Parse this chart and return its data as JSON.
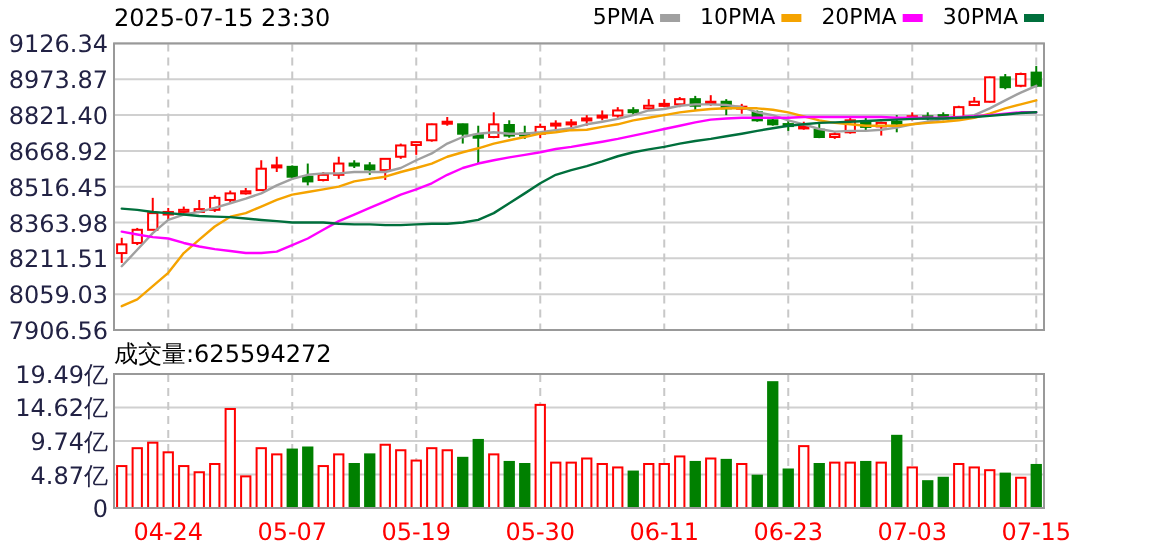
{
  "chart_data": [
    {
      "type": "candlestick",
      "title": "2025-07-15 23:30",
      "tick_labels": "y",
      "grid": true,
      "legend": "top right",
      "categories": [
        null,
        null,
        null,
        null,
        null,
        null,
        null,
        null,
        null,
        null,
        null,
        null,
        null,
        null,
        null,
        null,
        null,
        null,
        null,
        null,
        null,
        null,
        null,
        null,
        null,
        null,
        null,
        null,
        null,
        null,
        null,
        null,
        null,
        null,
        null,
        null,
        null,
        null,
        null,
        null,
        null,
        null,
        null,
        null,
        null,
        null,
        null,
        null,
        null,
        null,
        null,
        null,
        null,
        null,
        null,
        null,
        null,
        null,
        null,
        null
      ],
      "ylim": [
        7906.56,
        9126.34
      ],
      "yticks": [
        {
          "value": 7906.56,
          "label": "7906.56"
        },
        {
          "value": 8059.03,
          "label": "8059.03"
        },
        {
          "value": 8211.51,
          "label": "8211.51"
        },
        {
          "value": 8363.98,
          "label": "8363.98"
        },
        {
          "value": 8516.45,
          "label": "8516.45"
        },
        {
          "value": 8668.92,
          "label": "8668.92"
        },
        {
          "value": 8821.4,
          "label": "8821.40"
        },
        {
          "value": 8973.87,
          "label": "8973.87"
        },
        {
          "value": 9126.34,
          "label": "9126.34"
        }
      ],
      "ohlc": [
        [
          8234,
          8299,
          8192,
          8271
        ],
        [
          8277,
          8341,
          8268,
          8333
        ],
        [
          8333,
          8469,
          8333,
          8404
        ],
        [
          8398,
          8426,
          8375,
          8409
        ],
        [
          8409,
          8432,
          8398,
          8418
        ],
        [
          8409,
          8460,
          8404,
          8421
        ],
        [
          8418,
          8480,
          8409,
          8469
        ],
        [
          8460,
          8500,
          8446,
          8488
        ],
        [
          8488,
          8511,
          8483,
          8497
        ],
        [
          8502,
          8629,
          8502,
          8593
        ],
        [
          8601,
          8644,
          8579,
          8607
        ],
        [
          8601,
          8607,
          8545,
          8559
        ],
        [
          8559,
          8615,
          8522,
          8539
        ],
        [
          8545,
          8579,
          8539,
          8567
        ],
        [
          8567,
          8644,
          8550,
          8615
        ],
        [
          8615,
          8629,
          8596,
          8612
        ],
        [
          8607,
          8621,
          8567,
          8590
        ],
        [
          8587,
          8635,
          8545,
          8635
        ],
        [
          8644,
          8700,
          8635,
          8692
        ],
        [
          8694,
          8708,
          8652,
          8706
        ],
        [
          8714,
          8785,
          8708,
          8782
        ],
        [
          8788,
          8813,
          8776,
          8793
        ],
        [
          8782,
          8785,
          8700,
          8742
        ],
        [
          8737,
          8776,
          8615,
          8725
        ],
        [
          8728,
          8833,
          8723,
          8782
        ],
        [
          8779,
          8799,
          8725,
          8734
        ],
        [
          8743,
          8776,
          8720,
          8741
        ],
        [
          8742,
          8785,
          8723,
          8771
        ],
        [
          8779,
          8799,
          8757,
          8785
        ],
        [
          8785,
          8804,
          8765,
          8790
        ],
        [
          8801,
          8821,
          8776,
          8807
        ],
        [
          8813,
          8841,
          8799,
          8819
        ],
        [
          8819,
          8855,
          8810,
          8841
        ],
        [
          8842,
          8855,
          8821,
          8840
        ],
        [
          8850,
          8889,
          8841,
          8861
        ],
        [
          8864,
          8889,
          8855,
          8869
        ],
        [
          8867,
          8898,
          8855,
          8889
        ],
        [
          8889,
          8903,
          8841,
          8861
        ],
        [
          8875,
          8906,
          8861,
          8878
        ],
        [
          8878,
          8889,
          8821,
          8850
        ],
        [
          8853,
          8869,
          8827,
          8857
        ],
        [
          8833,
          8841,
          8793,
          8799
        ],
        [
          8799,
          8813,
          8776,
          8782
        ],
        [
          8783,
          8799,
          8754,
          8781
        ],
        [
          8765,
          8793,
          8759,
          8773
        ],
        [
          8759,
          8785,
          8723,
          8728
        ],
        [
          8728,
          8748,
          8720,
          8740
        ],
        [
          8748,
          8810,
          8742,
          8799
        ],
        [
          8793,
          8813,
          8757,
          8771
        ],
        [
          8773,
          8793,
          8734,
          8788
        ],
        [
          8793,
          8821,
          8748,
          8785
        ],
        [
          8807,
          8833,
          8799,
          8816
        ],
        [
          8816,
          8833,
          8799,
          8810
        ],
        [
          8821,
          8833,
          8799,
          8807
        ],
        [
          8813,
          8861,
          8810,
          8855
        ],
        [
          8864,
          8898,
          8861,
          8878
        ],
        [
          8878,
          8985,
          8875,
          8982
        ],
        [
          8982,
          8996,
          8931,
          8940
        ],
        [
          8946,
          9002,
          8940,
          8996
        ],
        [
          9002,
          9030,
          8940,
          8946
        ]
      ],
      "colors": [
        "#ff0000",
        "#ff0000",
        "#ff0000",
        "#ff0000",
        "#ff0000",
        "#ff0000",
        "#ff0000",
        "#ff0000",
        "#ff0000",
        "#ff0000",
        "#ff0000",
        "#008000",
        "#008000",
        "#ff0000",
        "#ff0000",
        "#008000",
        "#008000",
        "#ff0000",
        "#ff0000",
        "#ff0000",
        "#ff0000",
        "#ff0000",
        "#008000",
        "#008000",
        "#ff0000",
        "#008000",
        "#008000",
        "#ff0000",
        "#ff0000",
        "#ff0000",
        "#ff0000",
        "#ff0000",
        "#ff0000",
        "#008000",
        "#ff0000",
        "#ff0000",
        "#ff0000",
        "#008000",
        "#ff0000",
        "#008000",
        "#ff0000",
        "#008000",
        "#008000",
        "#008000",
        "#ff0000",
        "#008000",
        "#ff0000",
        "#ff0000",
        "#008000",
        "#ff0000",
        "#008000",
        "#ff0000",
        "#008000",
        "#008000",
        "#ff0000",
        "#ff0000",
        "#ff0000",
        "#008000",
        "#ff0000",
        "#008000"
      ],
      "series": [
        {
          "name": "5PMA",
          "type": "line",
          "color": "#a0a0a0",
          "values": [
            8178,
            8248,
            8319,
            8375,
            8398,
            8409,
            8426,
            8446,
            8466,
            8488,
            8522,
            8550,
            8567,
            8573,
            8573,
            8579,
            8579,
            8579,
            8596,
            8629,
            8658,
            8700,
            8728,
            8742,
            8748,
            8742,
            8742,
            8748,
            8757,
            8765,
            8782,
            8793,
            8805,
            8821,
            8841,
            8847,
            8861,
            8867,
            8867,
            8864,
            8855,
            8833,
            8821,
            8799,
            8782,
            8762,
            8751,
            8754,
            8754,
            8759,
            8768,
            8782,
            8793,
            8805,
            8810,
            8821,
            8850,
            8884,
            8917,
            8946
          ]
        },
        {
          "name": "10PMA",
          "type": "line",
          "color": "#f5a300",
          "values": [
            8008,
            8037,
            8093,
            8150,
            8234,
            8291,
            8347,
            8389,
            8404,
            8432,
            8460,
            8483,
            8494,
            8505,
            8517,
            8539,
            8550,
            8559,
            8579,
            8596,
            8615,
            8644,
            8663,
            8680,
            8700,
            8714,
            8728,
            8742,
            8748,
            8757,
            8759,
            8771,
            8782,
            8799,
            8810,
            8821,
            8833,
            8841,
            8847,
            8850,
            8850,
            8850,
            8844,
            8833,
            8816,
            8799,
            8788,
            8782,
            8776,
            8776,
            8776,
            8782,
            8788,
            8793,
            8799,
            8810,
            8827,
            8850,
            8867,
            8884
          ]
        },
        {
          "name": "20PMA",
          "type": "line",
          "color": "#ff00ff",
          "values": [
            8325,
            8313,
            8302,
            8296,
            8277,
            8262,
            8251,
            8243,
            8234,
            8234,
            8240,
            8268,
            8296,
            8333,
            8370,
            8398,
            8426,
            8454,
            8483,
            8505,
            8531,
            8567,
            8596,
            8615,
            8629,
            8641,
            8652,
            8663,
            8677,
            8686,
            8697,
            8708,
            8720,
            8734,
            8748,
            8762,
            8776,
            8790,
            8802,
            8807,
            8810,
            8810,
            8810,
            8810,
            8813,
            8813,
            8813,
            8813,
            8813,
            8813,
            8810,
            8810,
            8810,
            8810,
            8813,
            8816,
            8821,
            8827,
            8833,
            8833
          ]
        },
        {
          "name": "30PMA",
          "type": "line",
          "color": "#006f3c",
          "values": [
            8423,
            8418,
            8409,
            8404,
            8398,
            8392,
            8389,
            8387,
            8381,
            8375,
            8370,
            8364,
            8364,
            8364,
            8359,
            8356,
            8356,
            8353,
            8353,
            8356,
            8359,
            8359,
            8364,
            8375,
            8404,
            8446,
            8488,
            8531,
            8567,
            8587,
            8604,
            8624,
            8646,
            8663,
            8675,
            8686,
            8700,
            8711,
            8720,
            8731,
            8742,
            8754,
            8765,
            8776,
            8782,
            8788,
            8790,
            8793,
            8796,
            8799,
            8802,
            8805,
            8807,
            8807,
            8810,
            8813,
            8818,
            8824,
            8830,
            8833
          ]
        }
      ]
    },
    {
      "type": "bar",
      "title": "成交量:625594272",
      "grid": true,
      "categories": [
        null,
        null,
        null,
        "04-24",
        null,
        null,
        null,
        null,
        null,
        null,
        null,
        "05-07",
        null,
        null,
        null,
        null,
        null,
        null,
        null,
        "05-19",
        null,
        null,
        null,
        null,
        null,
        null,
        null,
        "05-30",
        null,
        null,
        null,
        null,
        null,
        null,
        null,
        "06-11",
        null,
        null,
        null,
        null,
        null,
        null,
        null,
        "06-23",
        null,
        null,
        null,
        null,
        null,
        null,
        null,
        "07-03",
        null,
        null,
        null,
        null,
        null,
        null,
        null,
        "07-15"
      ],
      "ylim": [
        0,
        19.49
      ],
      "yticks": [
        0,
        {
          "value": 4.87,
          "label": "4.87亿"
        },
        {
          "value": 9.74,
          "label": "9.74亿"
        },
        {
          "value": 14.62,
          "label": "14.62亿"
        },
        {
          "value": 19.49,
          "label": "19.49亿"
        }
      ],
      "values": [
        6.1,
        8.7,
        9.5,
        8.1,
        6.1,
        5.2,
        6.4,
        14.4,
        4.6,
        8.7,
        7.8,
        8.5,
        8.8,
        6.1,
        7.8,
        6.4,
        7.8,
        9.2,
        8.4,
        6.9,
        8.7,
        8.4,
        7.3,
        9.9,
        7.8,
        6.7,
        6.4,
        15.0,
        6.6,
        6.6,
        7.2,
        6.4,
        5.9,
        5.3,
        6.4,
        6.4,
        7.5,
        6.7,
        7.2,
        7.0,
        6.4,
        4.7,
        18.3,
        5.6,
        9.0,
        6.4,
        6.6,
        6.6,
        6.7,
        6.6,
        10.5,
        5.9,
        3.9,
        4.4,
        6.4,
        5.9,
        5.5,
        5.0,
        4.4,
        6.26
      ],
      "colors": [
        "#ff0000",
        "#ff0000",
        "#ff0000",
        "#ff0000",
        "#ff0000",
        "#ff0000",
        "#ff0000",
        "#ff0000",
        "#ff0000",
        "#ff0000",
        "#ff0000",
        "#008000",
        "#008000",
        "#ff0000",
        "#ff0000",
        "#008000",
        "#008000",
        "#ff0000",
        "#ff0000",
        "#ff0000",
        "#ff0000",
        "#ff0000",
        "#008000",
        "#008000",
        "#ff0000",
        "#008000",
        "#008000",
        "#ff0000",
        "#ff0000",
        "#ff0000",
        "#ff0000",
        "#ff0000",
        "#ff0000",
        "#008000",
        "#ff0000",
        "#ff0000",
        "#ff0000",
        "#008000",
        "#ff0000",
        "#008000",
        "#ff0000",
        "#008000",
        "#008000",
        "#008000",
        "#ff0000",
        "#008000",
        "#ff0000",
        "#ff0000",
        "#008000",
        "#ff0000",
        "#008000",
        "#ff0000",
        "#008000",
        "#008000",
        "#ff0000",
        "#ff0000",
        "#ff0000",
        "#008000",
        "#ff0000",
        "#008000"
      ]
    }
  ]
}
